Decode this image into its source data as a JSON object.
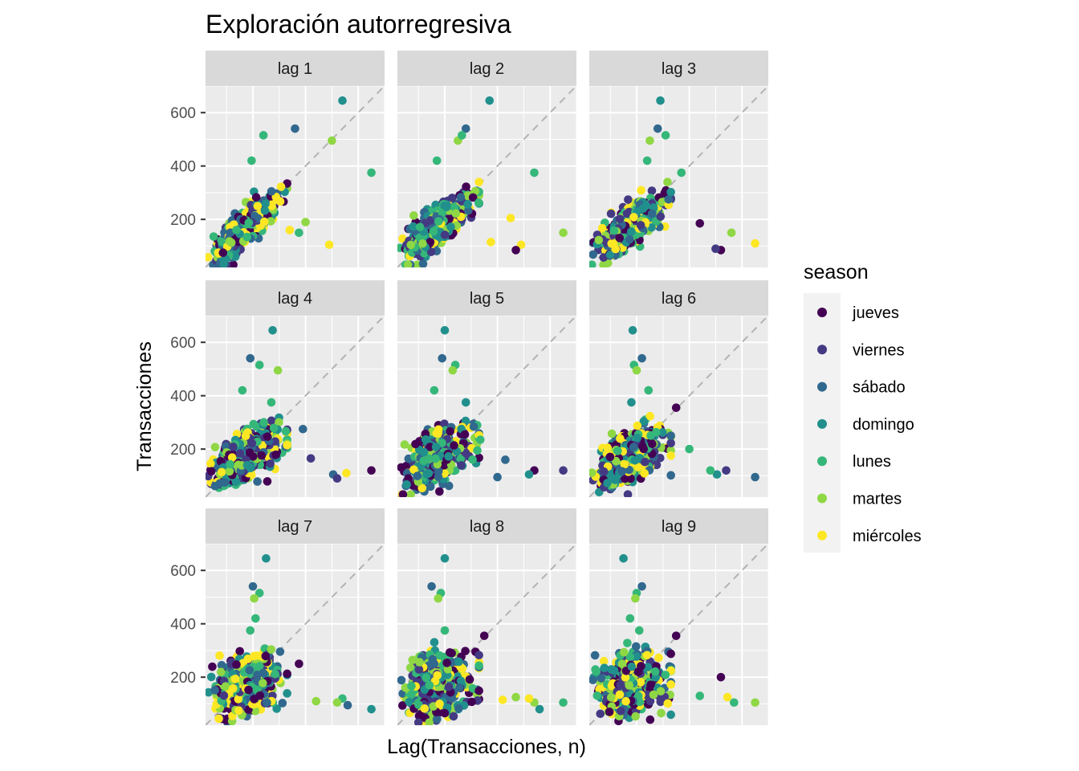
{
  "chart_data": {
    "type": "scatter",
    "title": "Exploración autorregresiva",
    "xlabel": "Lag(Transacciones, n)",
    "ylabel": "Transacciones",
    "ylim": [
      20,
      700
    ],
    "xlim": [
      20,
      700
    ],
    "yticks": [
      200,
      400,
      600
    ],
    "facets": [
      "lag 1",
      "lag 2",
      "lag 3",
      "lag 4",
      "lag 5",
      "lag 6",
      "lag 7",
      "lag 8",
      "lag 9"
    ],
    "reference_line": "y = x (dashed)",
    "grid": true,
    "legend": {
      "title": "season",
      "position": "right",
      "entries": [
        "jueves",
        "viernes",
        "sábado",
        "domingo",
        "lunes",
        "martes",
        "miércoles"
      ]
    },
    "colors": {
      "jueves": "#440154",
      "viernes": "#443a83",
      "sábado": "#31688e",
      "domingo": "#21908d",
      "lunes": "#35b779",
      "martes": "#8fd744",
      "miércoles": "#fde725"
    },
    "highlight_points": [
      {
        "facet": "lag 1",
        "points": [
          [
            540,
            645,
            "domingo"
          ],
          [
            360,
            540,
            "sábado"
          ],
          [
            650,
            375,
            "lunes"
          ],
          [
            500,
            495,
            "martes"
          ],
          [
            240,
            515,
            "lunes"
          ],
          [
            195,
            420,
            "lunes"
          ],
          [
            400,
            190,
            "martes"
          ],
          [
            490,
            105,
            "miércoles"
          ],
          [
            375,
            150,
            "lunes"
          ],
          [
            340,
            160,
            "miércoles"
          ]
        ]
      },
      {
        "facet": "lag 2",
        "points": [
          [
            370,
            645,
            "domingo"
          ],
          [
            280,
            540,
            "sábado"
          ],
          [
            540,
            375,
            "lunes"
          ],
          [
            250,
            495,
            "martes"
          ],
          [
            265,
            515,
            "lunes"
          ],
          [
            170,
            420,
            "lunes"
          ],
          [
            650,
            150,
            "martes"
          ],
          [
            450,
            205,
            "miércoles"
          ],
          [
            490,
            105,
            "miércoles"
          ],
          [
            470,
            85,
            "jueves"
          ],
          [
            375,
            115,
            "miércoles"
          ]
        ]
      },
      {
        "facet": "lag 3",
        "points": [
          [
            290,
            645,
            "domingo"
          ],
          [
            280,
            540,
            "sábado"
          ],
          [
            310,
            515,
            "lunes"
          ],
          [
            250,
            495,
            "martes"
          ],
          [
            240,
            420,
            "lunes"
          ],
          [
            370,
            375,
            "lunes"
          ],
          [
            650,
            110,
            "miércoles"
          ],
          [
            560,
            150,
            "martes"
          ],
          [
            520,
            85,
            "jueves"
          ],
          [
            500,
            90,
            "viernes"
          ],
          [
            440,
            185,
            "jueves"
          ]
        ]
      },
      {
        "facet": "lag 4",
        "points": [
          [
            275,
            645,
            "domingo"
          ],
          [
            190,
            540,
            "sábado"
          ],
          [
            225,
            515,
            "lunes"
          ],
          [
            295,
            495,
            "martes"
          ],
          [
            160,
            420,
            "lunes"
          ],
          [
            270,
            375,
            "lunes"
          ],
          [
            650,
            120,
            "jueves"
          ],
          [
            555,
            110,
            "miércoles"
          ],
          [
            505,
            105,
            "sábado"
          ],
          [
            520,
            90,
            "viernes"
          ],
          [
            420,
            165,
            "viernes"
          ],
          [
            390,
            275,
            "sábado"
          ]
        ]
      },
      {
        "facet": "lag 5",
        "points": [
          [
            200,
            645,
            "domingo"
          ],
          [
            190,
            540,
            "sábado"
          ],
          [
            240,
            515,
            "lunes"
          ],
          [
            230,
            495,
            "martes"
          ],
          [
            160,
            420,
            "lunes"
          ],
          [
            280,
            375,
            "domingo"
          ],
          [
            650,
            120,
            "viernes"
          ],
          [
            540,
            120,
            "jueves"
          ],
          [
            520,
            105,
            "domingo"
          ],
          [
            430,
            160,
            "sábado"
          ],
          [
            400,
            95,
            "sábado"
          ],
          [
            335,
            235,
            "lunes"
          ]
        ]
      },
      {
        "facet": "lag 6",
        "points": [
          [
            185,
            645,
            "domingo"
          ],
          [
            220,
            540,
            "sábado"
          ],
          [
            190,
            515,
            "lunes"
          ],
          [
            200,
            495,
            "martes"
          ],
          [
            245,
            420,
            "lunes"
          ],
          [
            180,
            375,
            "domingo"
          ],
          [
            650,
            95,
            "sábado"
          ],
          [
            540,
            120,
            "viernes"
          ],
          [
            505,
            105,
            "domingo"
          ],
          [
            480,
            120,
            "lunes"
          ],
          [
            400,
            200,
            "lunes"
          ],
          [
            350,
            355,
            "jueves"
          ]
        ]
      },
      {
        "facet": "lag 7",
        "points": [
          [
            250,
            645,
            "domingo"
          ],
          [
            200,
            540,
            "sábado"
          ],
          [
            225,
            515,
            "lunes"
          ],
          [
            205,
            495,
            "martes"
          ],
          [
            210,
            420,
            "lunes"
          ],
          [
            190,
            375,
            "lunes"
          ],
          [
            650,
            80,
            "domingo"
          ],
          [
            560,
            95,
            "sábado"
          ],
          [
            540,
            120,
            "lunes"
          ],
          [
            520,
            105,
            "martes"
          ],
          [
            440,
            110,
            "martes"
          ],
          [
            375,
            250,
            "jueves"
          ]
        ]
      },
      {
        "facet": "lag 8",
        "points": [
          [
            200,
            645,
            "domingo"
          ],
          [
            150,
            540,
            "sábado"
          ],
          [
            185,
            515,
            "lunes"
          ],
          [
            175,
            495,
            "martes"
          ],
          [
            200,
            375,
            "lunes"
          ],
          [
            350,
            355,
            "jueves"
          ],
          [
            650,
            105,
            "lunes"
          ],
          [
            560,
            80,
            "domingo"
          ],
          [
            540,
            105,
            "martes"
          ],
          [
            520,
            120,
            "miércoles"
          ],
          [
            470,
            125,
            "martes"
          ],
          [
            420,
            115,
            "miércoles"
          ]
        ]
      },
      {
        "facet": "lag 9",
        "points": [
          [
            150,
            645,
            "domingo"
          ],
          [
            220,
            540,
            "sábado"
          ],
          [
            200,
            515,
            "lunes"
          ],
          [
            195,
            495,
            "martes"
          ],
          [
            175,
            420,
            "lunes"
          ],
          [
            210,
            375,
            "lunes"
          ],
          [
            650,
            105,
            "martes"
          ],
          [
            570,
            105,
            "lunes"
          ],
          [
            545,
            125,
            "miércoles"
          ],
          [
            520,
            200,
            "jueves"
          ],
          [
            440,
            130,
            "lunes"
          ],
          [
            350,
            355,
            "jueves"
          ]
        ]
      }
    ]
  }
}
